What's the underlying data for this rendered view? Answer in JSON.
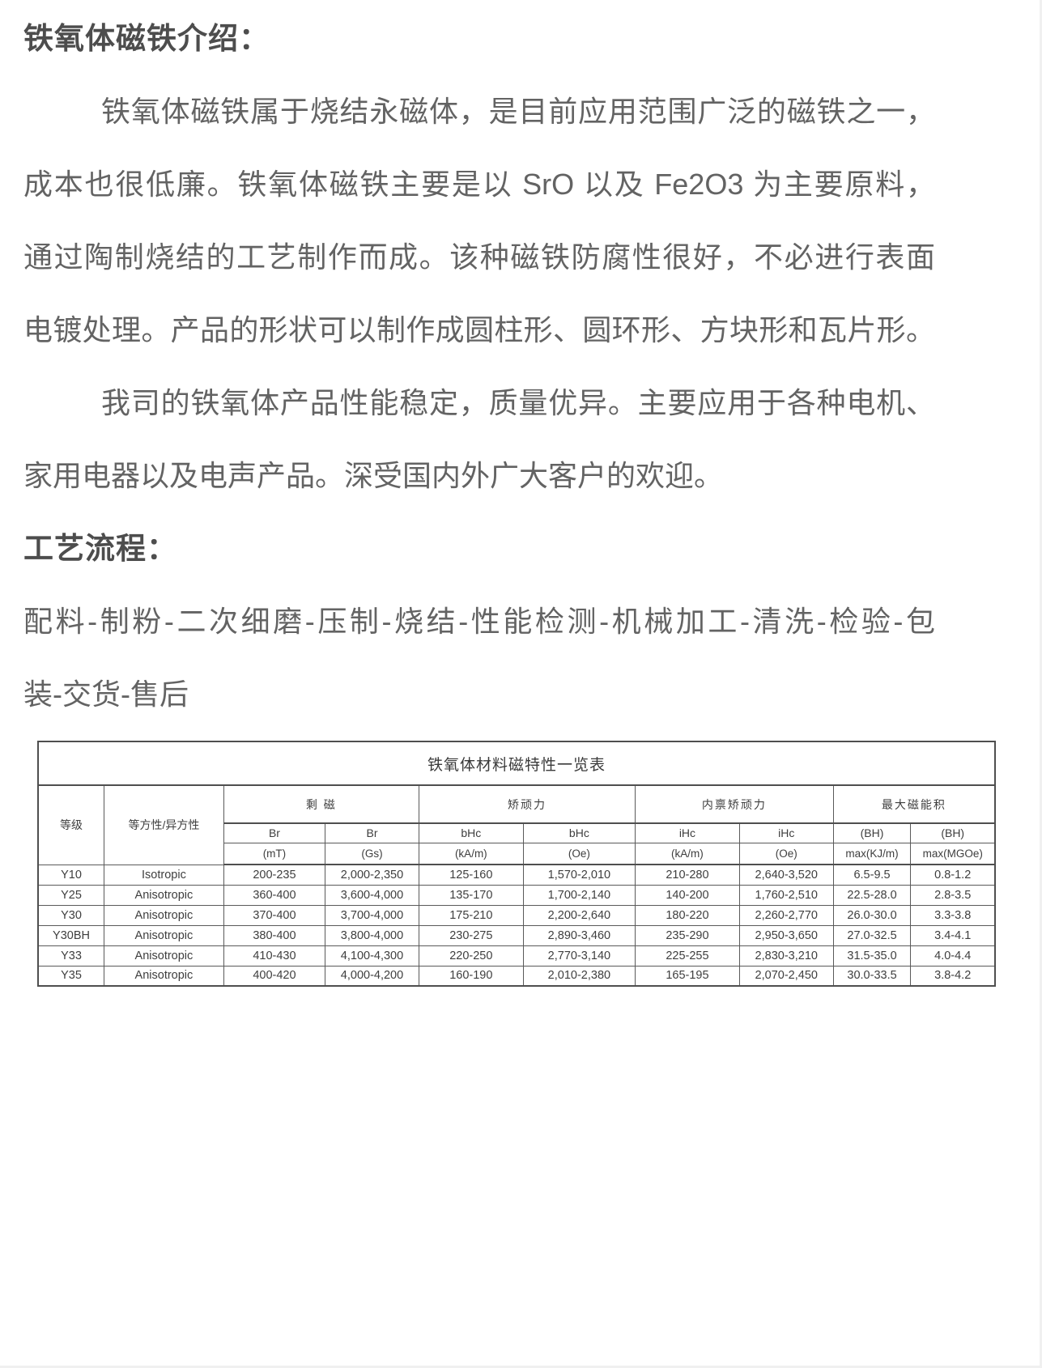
{
  "doc": {
    "intro_heading": "铁氧体磁铁介绍：",
    "intro_lines": [
      "铁氧体磁铁属于烧结永磁体，是目前应用范围广泛的磁铁之一，",
      "成本也很低廉。铁氧体磁铁主要是以 SrO 以及 Fe2O3 为主要原料，",
      "通过陶制烧结的工艺制作而成。该种磁铁防腐性很好，不必进行表面",
      "电镀处理。产品的形状可以制作成圆柱形、圆环形、方块形和瓦片形。",
      "我司的铁氧体产品性能稳定，质量优异。主要应用于各种电机、",
      "家用电器以及电声产品。深受国内外广大客户的欢迎。"
    ],
    "process_heading": "工艺流程：",
    "process_lines": [
      "配料-制粉-二次细磨-压制-烧结-性能检测-机械加工-清洗-检验-包",
      "装-交货-售后"
    ]
  },
  "table": {
    "title": "铁氧体材料磁特性一览表",
    "grade_header": "等级",
    "isotropy_header": "等方性/异方性",
    "groups": [
      {
        "label": "剩 磁",
        "cols": [
          {
            "top": "Br",
            "unit": "(mT)"
          },
          {
            "top": "Br",
            "unit": "(Gs)"
          }
        ]
      },
      {
        "label": "矫顽力",
        "cols": [
          {
            "top": "bHc",
            "unit": "(kA/m)"
          },
          {
            "top": "bHc",
            "unit": "(Oe)"
          }
        ]
      },
      {
        "label": "内禀矫顽力",
        "cols": [
          {
            "top": "iHc",
            "unit": "(kA/m)"
          },
          {
            "top": "iHc",
            "unit": "(Oe)"
          }
        ]
      },
      {
        "label": "最大磁能积",
        "cols": [
          {
            "top": "(BH)",
            "unit": "max(KJ/m)"
          },
          {
            "top": "(BH)",
            "unit": "max(MGOe)"
          }
        ]
      }
    ],
    "rows": [
      [
        "Y10",
        "Isotropic",
        "200-235",
        "2,000-2,350",
        "125-160",
        "1,570-2,010",
        "210-280",
        "2,640-3,520",
        "6.5-9.5",
        "0.8-1.2"
      ],
      [
        "Y25",
        "Anisotropic",
        "360-400",
        "3,600-4,000",
        "135-170",
        "1,700-2,140",
        "140-200",
        "1,760-2,510",
        "22.5-28.0",
        "2.8-3.5"
      ],
      [
        "Y30",
        "Anisotropic",
        "370-400",
        "3,700-4,000",
        "175-210",
        "2,200-2,640",
        "180-220",
        "2,260-2,770",
        "26.0-30.0",
        "3.3-3.8"
      ],
      [
        "Y30BH",
        "Anisotropic",
        "380-400",
        "3,800-4,000",
        "230-275",
        "2,890-3,460",
        "235-290",
        "2,950-3,650",
        "27.0-32.5",
        "3.4-4.1"
      ],
      [
        "Y33",
        "Anisotropic",
        "410-430",
        "4,100-4,300",
        "220-250",
        "2,770-3,140",
        "225-255",
        "2,830-3,210",
        "31.5-35.0",
        "4.0-4.4"
      ],
      [
        "Y35",
        "Anisotropic",
        "400-420",
        "4,000-4,200",
        "160-190",
        "2,010-2,380",
        "165-195",
        "2,070-2,450",
        "30.0-33.5",
        "3.8-4.2"
      ]
    ]
  },
  "colors": {
    "body_text": "#636363",
    "heading_text": "#4d4d4d",
    "table_text": "#3e3e3e",
    "table_border": "#4f4f4f",
    "background": "#ffffff"
  }
}
